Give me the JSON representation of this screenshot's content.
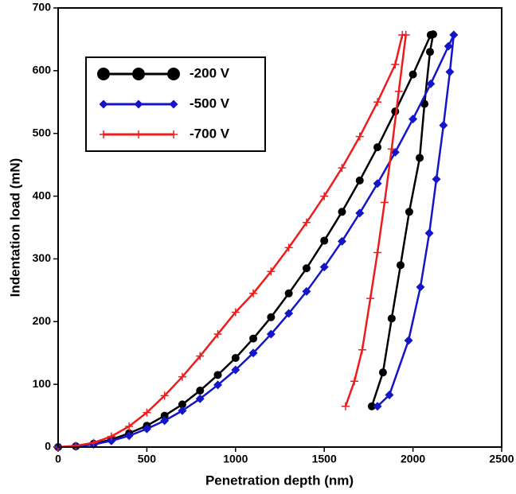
{
  "chart_data": {
    "type": "line",
    "x_label": "Penetration depth (nm)",
    "y_label": "Indentation load (mN)",
    "xlim": [
      0,
      2500
    ],
    "ylim": [
      0,
      700
    ],
    "xticks": [
      0,
      500,
      1000,
      1500,
      2000,
      2500
    ],
    "yticks": [
      0,
      100,
      200,
      300,
      400,
      500,
      600,
      700
    ],
    "grid": false,
    "legend": "upper left",
    "series": [
      {
        "name": "-200 V",
        "color": "#000000",
        "marker": "circle",
        "x": [
          0,
          100,
          200,
          300,
          400,
          500,
          600,
          700,
          800,
          900,
          1000,
          1100,
          1200,
          1300,
          1400,
          1500,
          1600,
          1700,
          1800,
          1900,
          2000,
          2100,
          2114,
          2096,
          2065,
          2038,
          1979,
          1930,
          1880,
          1831,
          1768
        ],
        "values": [
          0,
          1.2,
          5.2,
          12,
          22,
          34,
          50,
          68,
          90,
          115,
          142,
          173,
          207,
          245,
          285,
          329,
          375,
          425,
          478,
          535,
          594,
          657,
          658,
          630,
          547,
          461,
          375,
          290,
          205,
          119,
          65
        ]
      },
      {
        "name": "-500 V",
        "color": "#1515c8",
        "marker": "diamond",
        "x": [
          0,
          100,
          200,
          300,
          400,
          500,
          600,
          700,
          800,
          900,
          1000,
          1100,
          1200,
          1300,
          1400,
          1500,
          1600,
          1700,
          1800,
          1900,
          2000,
          2100,
          2200,
          2230,
          2208,
          2172,
          2132,
          2092,
          2042,
          1975,
          1867,
          1800
        ],
        "values": [
          0,
          1.0,
          4.3,
          9.9,
          18,
          29,
          42,
          58,
          77,
          99,
          123,
          150,
          180,
          213,
          248,
          287,
          328,
          373,
          420,
          470,
          523,
          579,
          639,
          657,
          598,
          513,
          427,
          341,
          255,
          170,
          83,
          65
        ]
      },
      {
        "name": "-700 V",
        "color": "#ee1c1c",
        "marker": "plus",
        "x": [
          0,
          100,
          200,
          300,
          400,
          500,
          600,
          700,
          800,
          900,
          1000,
          1100,
          1200,
          1300,
          1400,
          1500,
          1600,
          1700,
          1800,
          1900,
          1940,
          1960,
          1920,
          1880,
          1840,
          1800,
          1760,
          1714,
          1670,
          1620
        ],
        "values": [
          0,
          2,
          7,
          17,
          33,
          55,
          82,
          112,
          145,
          180,
          215,
          245,
          280,
          318,
          358,
          400,
          445,
          495,
          550,
          610,
          657,
          657,
          567,
          475,
          390,
          310,
          237,
          155,
          105,
          65
        ]
      }
    ]
  }
}
